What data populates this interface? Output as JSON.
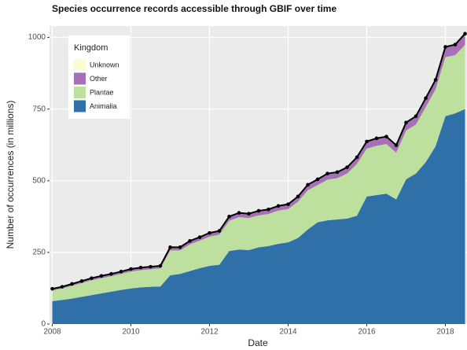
{
  "chart_data": {
    "type": "stacked-area",
    "title": "Species occurrence records accessible through GBIF over time",
    "x_label": "Date",
    "y_label": "Number of occurrences (in millions)",
    "legend_title": "Kingdom",
    "legend_position": "top-left",
    "x": [
      2008.0,
      2008.25,
      2008.5,
      2008.75,
      2009.0,
      2009.25,
      2009.5,
      2009.75,
      2010.0,
      2010.25,
      2010.5,
      2010.75,
      2011.0,
      2011.25,
      2011.5,
      2011.75,
      2012.0,
      2012.25,
      2012.5,
      2012.75,
      2013.0,
      2013.25,
      2013.5,
      2013.75,
      2014.0,
      2014.25,
      2014.5,
      2014.75,
      2015.0,
      2015.25,
      2015.5,
      2015.75,
      2016.0,
      2016.25,
      2016.5,
      2016.75,
      2017.0,
      2017.25,
      2017.5,
      2017.75,
      2018.0,
      2018.25,
      2018.5
    ],
    "series": [
      {
        "name": "Animalia",
        "color": "#3070a8",
        "values": [
          80,
          84,
          89,
          95,
          101,
          107,
          113,
          119,
          124,
          128,
          130,
          131,
          170,
          175,
          185,
          195,
          203,
          207,
          255,
          260,
          258,
          268,
          272,
          280,
          285,
          300,
          330,
          355,
          362,
          365,
          368,
          378,
          445,
          450,
          455,
          435,
          505,
          525,
          565,
          620,
          725,
          735,
          750
        ]
      },
      {
        "name": "Plantae",
        "color": "#bde09f",
        "values": [
          37,
          40,
          44,
          48,
          52,
          53,
          54,
          56,
          59,
          60,
          61,
          63,
          87,
          82,
          93,
          96,
          102,
          105,
          105,
          113,
          112,
          111,
          112,
          116,
          116,
          127,
          137,
          130,
          142,
          144,
          157,
          181,
          167,
          172,
          173,
          163,
          170,
          171,
          192,
          199,
          206,
          203,
          224
        ]
      },
      {
        "name": "Other",
        "color": "#a66fb6",
        "values": [
          5,
          5,
          6,
          6,
          6,
          7,
          7,
          7,
          8,
          8,
          8,
          8,
          10,
          10,
          11,
          11,
          12,
          12,
          14,
          14,
          14,
          15,
          15,
          15,
          16,
          17,
          18,
          19,
          20,
          20,
          21,
          22,
          24,
          25,
          25,
          25,
          27,
          28,
          30,
          32,
          35,
          36,
          38
        ]
      },
      {
        "name": "Unknown",
        "color": "#fcfcd2",
        "values": [
          1,
          1,
          1,
          1,
          1,
          1,
          1,
          1,
          1,
          1,
          1,
          1,
          1,
          1,
          1,
          1,
          1,
          1,
          1,
          1,
          1,
          1,
          1,
          1,
          1,
          1,
          1,
          1,
          1,
          1,
          1,
          1,
          1,
          1,
          1,
          1,
          1,
          1,
          1,
          1,
          1,
          1,
          1
        ]
      }
    ],
    "xlim": [
      2007.93,
      2018.55
    ],
    "xticks": [
      2008,
      2010,
      2012,
      2014,
      2016,
      2018
    ],
    "ylim": [
      0,
      1040
    ],
    "yticks": [
      0,
      250,
      500,
      750,
      1000
    ],
    "grid": true
  }
}
